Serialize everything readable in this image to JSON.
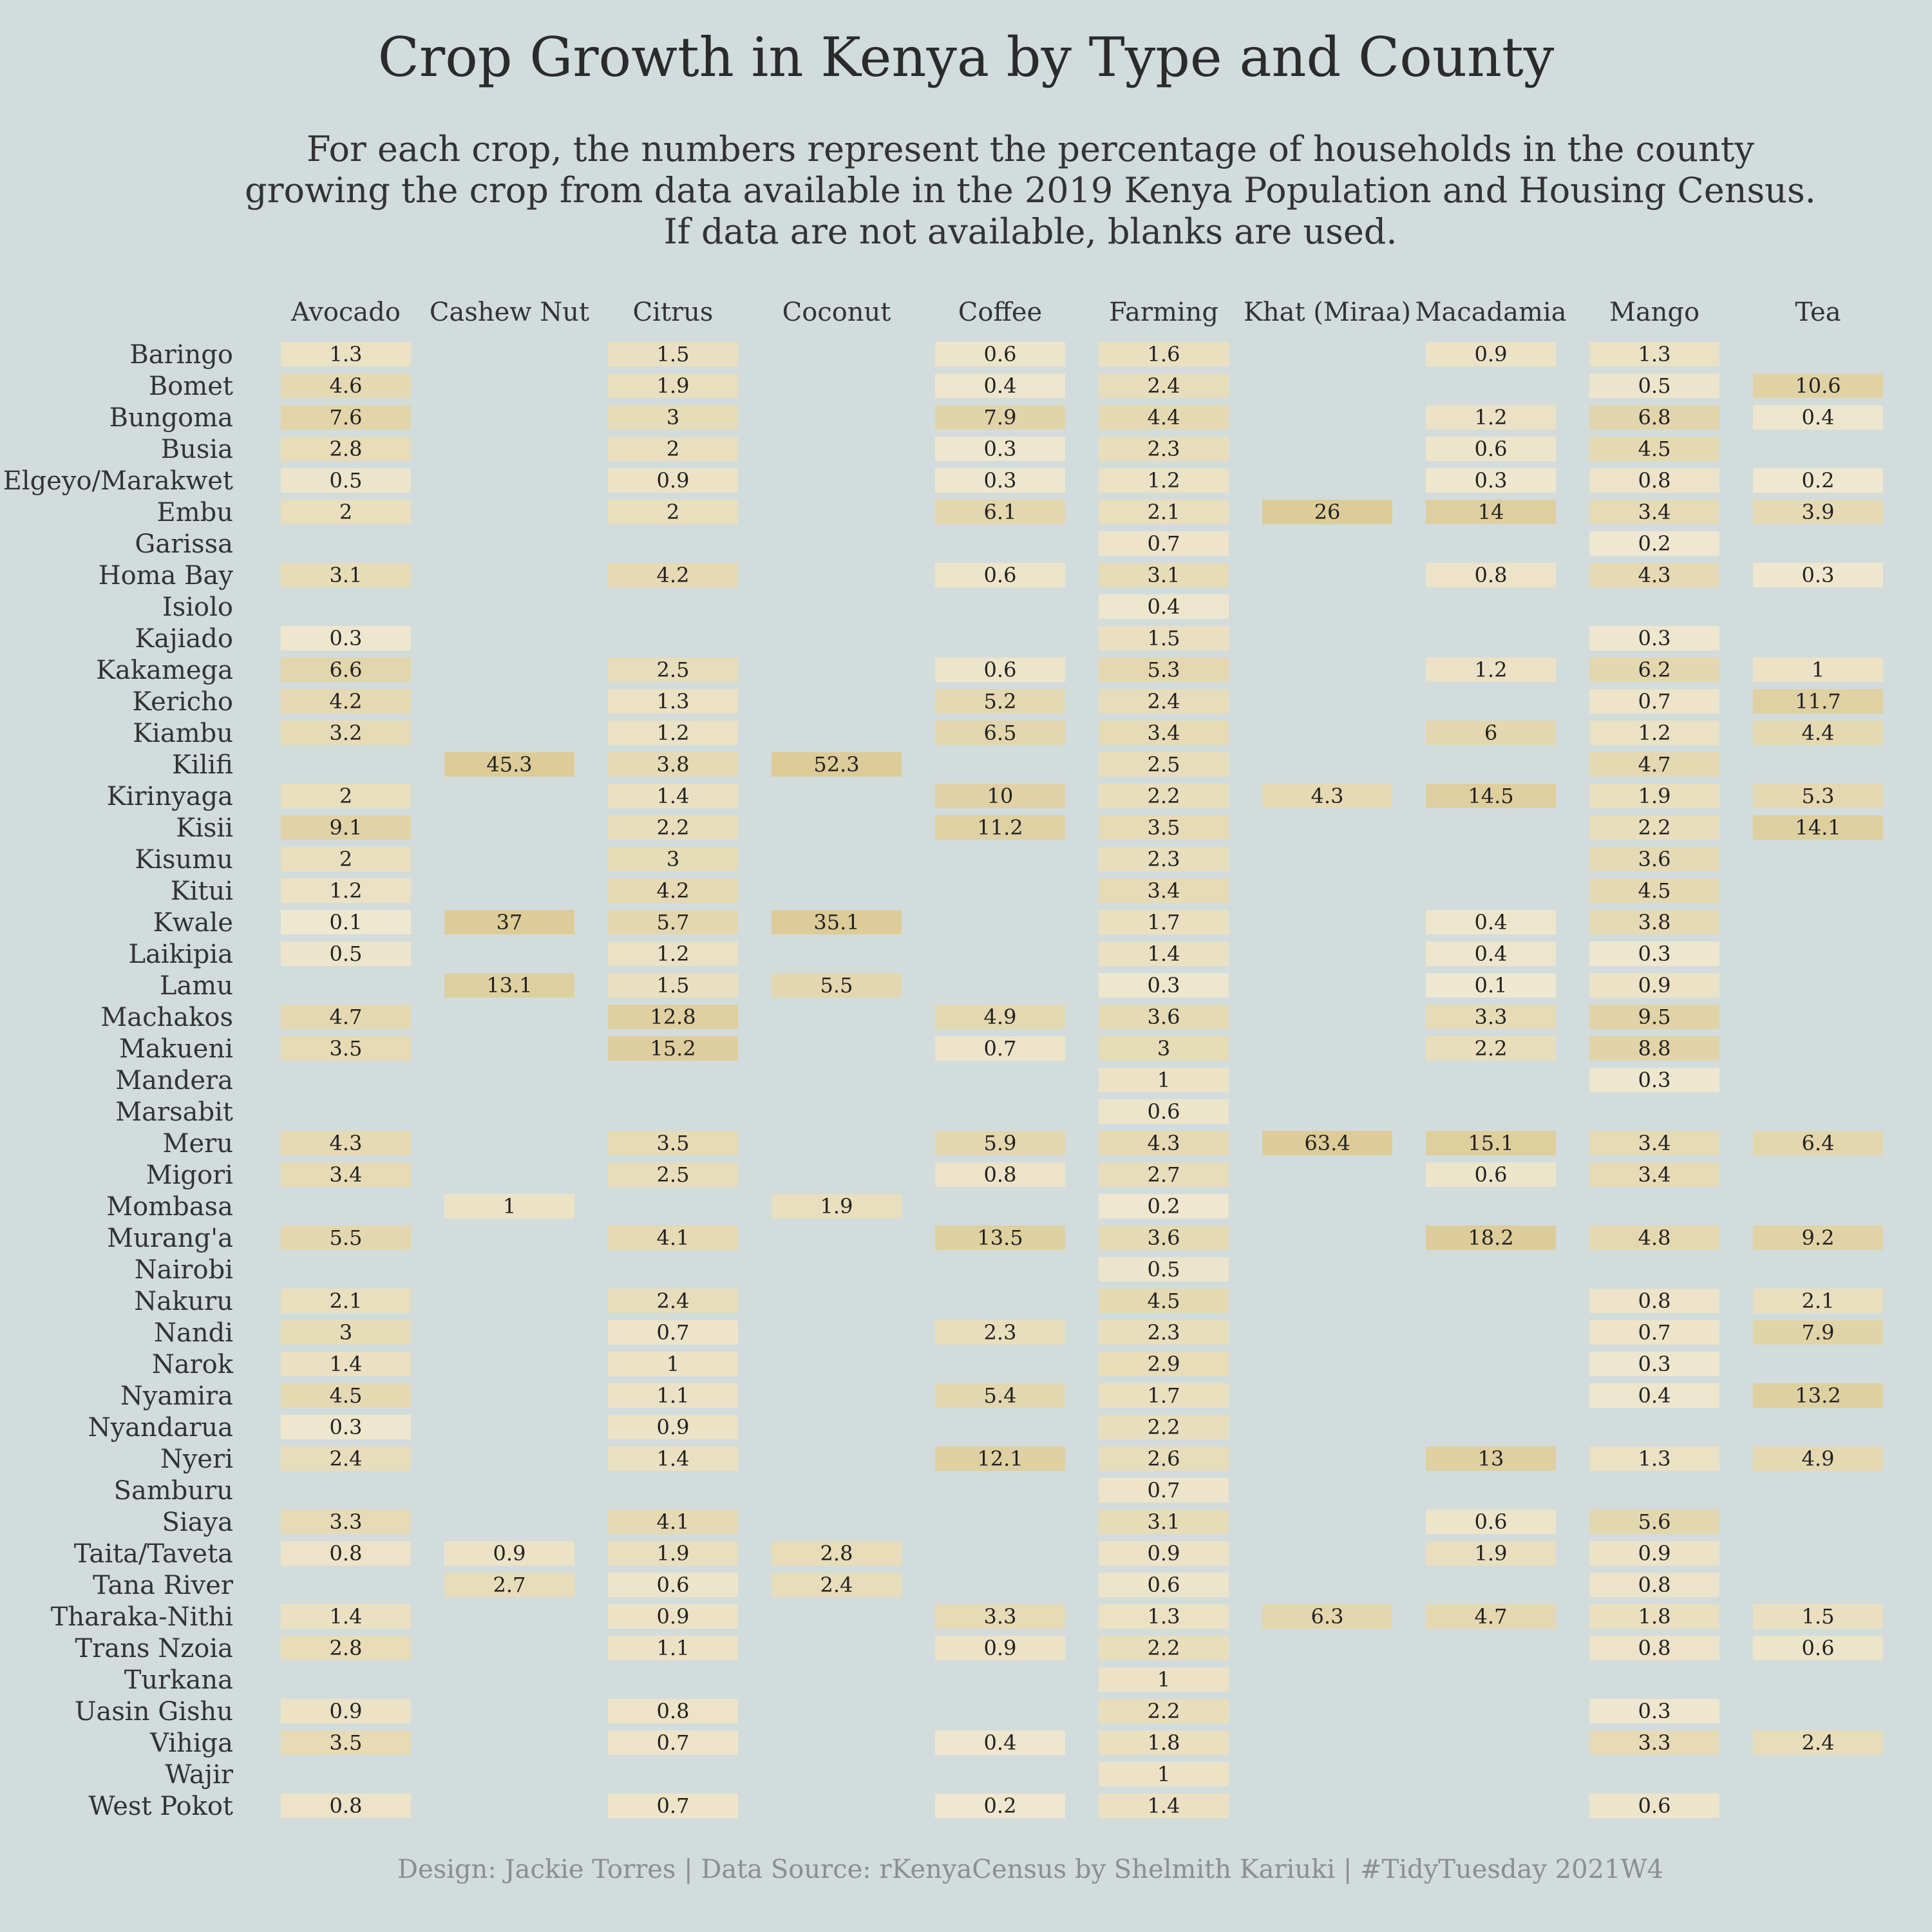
{
  "chart_data": {
    "type": "table",
    "title": "Crop Growth in Kenya by Type and County",
    "subtitle": [
      "For each crop, the numbers represent the percentage of households in the county",
      "growing the crop from data available in the 2019 Kenya Population and Housing Census.",
      "If data are not available, blanks are used."
    ],
    "caption": "Design: Jackie Torres | Data Source: rKenyaCensus by Shelmith Kariuki | #TidyTuesday 2021W4",
    "columns": [
      "Avocado",
      "Cashew Nut",
      "Citrus",
      "Coconut",
      "Coffee",
      "Farming",
      "Khat (Miraa)",
      "Macadamia",
      "Mango",
      "Tea"
    ],
    "colors": {
      "background": "#d2dcdd",
      "low": "#f0e9d3",
      "high": "#ddcc98"
    },
    "rows": [
      {
        "county": "Baringo",
        "values": [
          "1.3",
          null,
          "1.5",
          null,
          "0.6",
          "1.6",
          null,
          "0.9",
          "1.3",
          null
        ]
      },
      {
        "county": "Bomet",
        "values": [
          "4.6",
          null,
          "1.9",
          null,
          "0.4",
          "2.4",
          null,
          null,
          "0.5",
          "10.6"
        ]
      },
      {
        "county": "Bungoma",
        "values": [
          "7.6",
          null,
          "3",
          null,
          "7.9",
          "4.4",
          null,
          "1.2",
          "6.8",
          "0.4"
        ]
      },
      {
        "county": "Busia",
        "values": [
          "2.8",
          null,
          "2",
          null,
          "0.3",
          "2.3",
          null,
          "0.6",
          "4.5",
          null
        ]
      },
      {
        "county": "Elgeyo/Marakwet",
        "values": [
          "0.5",
          null,
          "0.9",
          null,
          "0.3",
          "1.2",
          null,
          "0.3",
          "0.8",
          "0.2"
        ]
      },
      {
        "county": "Embu",
        "values": [
          "2",
          null,
          "2",
          null,
          "6.1",
          "2.1",
          "26",
          "14",
          "3.4",
          "3.9"
        ]
      },
      {
        "county": "Garissa",
        "values": [
          null,
          null,
          null,
          null,
          null,
          "0.7",
          null,
          null,
          "0.2",
          null
        ]
      },
      {
        "county": "Homa Bay",
        "values": [
          "3.1",
          null,
          "4.2",
          null,
          "0.6",
          "3.1",
          null,
          "0.8",
          "4.3",
          "0.3"
        ]
      },
      {
        "county": "Isiolo",
        "values": [
          null,
          null,
          null,
          null,
          null,
          "0.4",
          null,
          null,
          null,
          null
        ]
      },
      {
        "county": "Kajiado",
        "values": [
          "0.3",
          null,
          null,
          null,
          null,
          "1.5",
          null,
          null,
          "0.3",
          null
        ]
      },
      {
        "county": "Kakamega",
        "values": [
          "6.6",
          null,
          "2.5",
          null,
          "0.6",
          "5.3",
          null,
          "1.2",
          "6.2",
          "1"
        ]
      },
      {
        "county": "Kericho",
        "values": [
          "4.2",
          null,
          "1.3",
          null,
          "5.2",
          "2.4",
          null,
          null,
          "0.7",
          "11.7"
        ]
      },
      {
        "county": "Kiambu",
        "values": [
          "3.2",
          null,
          "1.2",
          null,
          "6.5",
          "3.4",
          null,
          "6",
          "1.2",
          "4.4"
        ]
      },
      {
        "county": "Kilifi",
        "values": [
          null,
          "45.3",
          "3.8",
          "52.3",
          null,
          "2.5",
          null,
          null,
          "4.7",
          null
        ]
      },
      {
        "county": "Kirinyaga",
        "values": [
          "2",
          null,
          "1.4",
          null,
          "10",
          "2.2",
          "4.3",
          "14.5",
          "1.9",
          "5.3"
        ]
      },
      {
        "county": "Kisii",
        "values": [
          "9.1",
          null,
          "2.2",
          null,
          "11.2",
          "3.5",
          null,
          null,
          "2.2",
          "14.1"
        ]
      },
      {
        "county": "Kisumu",
        "values": [
          "2",
          null,
          "3",
          null,
          null,
          "2.3",
          null,
          null,
          "3.6",
          null
        ]
      },
      {
        "county": "Kitui",
        "values": [
          "1.2",
          null,
          "4.2",
          null,
          null,
          "3.4",
          null,
          null,
          "4.5",
          null
        ]
      },
      {
        "county": "Kwale",
        "values": [
          "0.1",
          "37",
          "5.7",
          "35.1",
          null,
          "1.7",
          null,
          "0.4",
          "3.8",
          null
        ]
      },
      {
        "county": "Laikipia",
        "values": [
          "0.5",
          null,
          "1.2",
          null,
          null,
          "1.4",
          null,
          "0.4",
          "0.3",
          null
        ]
      },
      {
        "county": "Lamu",
        "values": [
          null,
          "13.1",
          "1.5",
          "5.5",
          null,
          "0.3",
          null,
          "0.1",
          "0.9",
          null
        ]
      },
      {
        "county": "Machakos",
        "values": [
          "4.7",
          null,
          "12.8",
          null,
          "4.9",
          "3.6",
          null,
          "3.3",
          "9.5",
          null
        ]
      },
      {
        "county": "Makueni",
        "values": [
          "3.5",
          null,
          "15.2",
          null,
          "0.7",
          "3",
          null,
          "2.2",
          "8.8",
          null
        ]
      },
      {
        "county": "Mandera",
        "values": [
          null,
          null,
          null,
          null,
          null,
          "1",
          null,
          null,
          "0.3",
          null
        ]
      },
      {
        "county": "Marsabit",
        "values": [
          null,
          null,
          null,
          null,
          null,
          "0.6",
          null,
          null,
          null,
          null
        ]
      },
      {
        "county": "Meru",
        "values": [
          "4.3",
          null,
          "3.5",
          null,
          "5.9",
          "4.3",
          "63.4",
          "15.1",
          "3.4",
          "6.4"
        ]
      },
      {
        "county": "Migori",
        "values": [
          "3.4",
          null,
          "2.5",
          null,
          "0.8",
          "2.7",
          null,
          "0.6",
          "3.4",
          null
        ]
      },
      {
        "county": "Mombasa",
        "values": [
          null,
          "1",
          null,
          "1.9",
          null,
          "0.2",
          null,
          null,
          null,
          null
        ]
      },
      {
        "county": "Murang'a",
        "values": [
          "5.5",
          null,
          "4.1",
          null,
          "13.5",
          "3.6",
          null,
          "18.2",
          "4.8",
          "9.2"
        ]
      },
      {
        "county": "Nairobi",
        "values": [
          null,
          null,
          null,
          null,
          null,
          "0.5",
          null,
          null,
          null,
          null
        ]
      },
      {
        "county": "Nakuru",
        "values": [
          "2.1",
          null,
          "2.4",
          null,
          null,
          "4.5",
          null,
          null,
          "0.8",
          "2.1"
        ]
      },
      {
        "county": "Nandi",
        "values": [
          "3",
          null,
          "0.7",
          null,
          "2.3",
          "2.3",
          null,
          null,
          "0.7",
          "7.9"
        ]
      },
      {
        "county": "Narok",
        "values": [
          "1.4",
          null,
          "1",
          null,
          null,
          "2.9",
          null,
          null,
          "0.3",
          null
        ]
      },
      {
        "county": "Nyamira",
        "values": [
          "4.5",
          null,
          "1.1",
          null,
          "5.4",
          "1.7",
          null,
          null,
          "0.4",
          "13.2"
        ]
      },
      {
        "county": "Nyandarua",
        "values": [
          "0.3",
          null,
          "0.9",
          null,
          null,
          "2.2",
          null,
          null,
          null,
          null
        ]
      },
      {
        "county": "Nyeri",
        "values": [
          "2.4",
          null,
          "1.4",
          null,
          "12.1",
          "2.6",
          null,
          "13",
          "1.3",
          "4.9"
        ]
      },
      {
        "county": "Samburu",
        "values": [
          null,
          null,
          null,
          null,
          null,
          "0.7",
          null,
          null,
          null,
          null
        ]
      },
      {
        "county": "Siaya",
        "values": [
          "3.3",
          null,
          "4.1",
          null,
          null,
          "3.1",
          null,
          "0.6",
          "5.6",
          null
        ]
      },
      {
        "county": "Taita/Taveta",
        "values": [
          "0.8",
          "0.9",
          "1.9",
          "2.8",
          null,
          "0.9",
          null,
          "1.9",
          "0.9",
          null
        ]
      },
      {
        "county": "Tana River",
        "values": [
          null,
          "2.7",
          "0.6",
          "2.4",
          null,
          "0.6",
          null,
          null,
          "0.8",
          null
        ]
      },
      {
        "county": "Tharaka-Nithi",
        "values": [
          "1.4",
          null,
          "0.9",
          null,
          "3.3",
          "1.3",
          "6.3",
          "4.7",
          "1.8",
          "1.5"
        ]
      },
      {
        "county": "Trans Nzoia",
        "values": [
          "2.8",
          null,
          "1.1",
          null,
          "0.9",
          "2.2",
          null,
          null,
          "0.8",
          "0.6"
        ]
      },
      {
        "county": "Turkana",
        "values": [
          null,
          null,
          null,
          null,
          null,
          "1",
          null,
          null,
          null,
          null
        ]
      },
      {
        "county": "Uasin Gishu",
        "values": [
          "0.9",
          null,
          "0.8",
          null,
          null,
          "2.2",
          null,
          null,
          "0.3",
          null
        ]
      },
      {
        "county": "Vihiga",
        "values": [
          "3.5",
          null,
          "0.7",
          null,
          "0.4",
          "1.8",
          null,
          null,
          "3.3",
          "2.4"
        ]
      },
      {
        "county": "Wajir",
        "values": [
          null,
          null,
          null,
          null,
          null,
          "1",
          null,
          null,
          null,
          null
        ]
      },
      {
        "county": "West Pokot",
        "values": [
          "0.8",
          null,
          "0.7",
          null,
          "0.2",
          "1.4",
          null,
          null,
          "0.6",
          null
        ]
      }
    ]
  }
}
